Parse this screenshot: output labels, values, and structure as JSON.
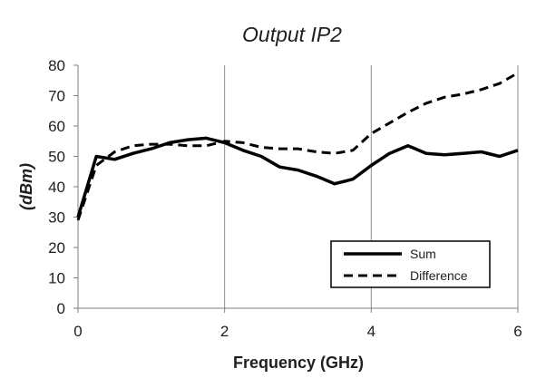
{
  "chart_data": {
    "type": "line",
    "title": "Output IP2",
    "xlabel": "Frequency (GHz)",
    "ylabel": "(dBm)",
    "xlim": [
      0,
      6
    ],
    "ylim": [
      0,
      80
    ],
    "x_ticks": [
      0,
      2,
      4,
      6
    ],
    "y_ticks": [
      0,
      10,
      20,
      30,
      40,
      50,
      60,
      70,
      80
    ],
    "grid": "vertical",
    "legend_position": "bottom-right",
    "series": [
      {
        "name": "Sum",
        "style": "solid",
        "color": "#000000",
        "x": [
          0,
          0.25,
          0.5,
          0.75,
          1.0,
          1.25,
          1.5,
          1.75,
          2.0,
          2.25,
          2.5,
          2.75,
          3.0,
          3.25,
          3.5,
          3.75,
          4.0,
          4.25,
          4.5,
          4.75,
          5.0,
          5.25,
          5.5,
          5.75,
          6.0
        ],
        "y": [
          30,
          50,
          49,
          51,
          52.5,
          54.5,
          55.5,
          56,
          54.5,
          52,
          50,
          46.5,
          45.5,
          43.5,
          41,
          42.5,
          47,
          51,
          53.5,
          51,
          50.5,
          51,
          51.5,
          50,
          52
        ]
      },
      {
        "name": "Difference",
        "style": "dashed",
        "color": "#000000",
        "x": [
          0,
          0.25,
          0.5,
          0.75,
          1.0,
          1.25,
          1.5,
          1.75,
          2.0,
          2.25,
          2.5,
          2.75,
          3.0,
          3.25,
          3.5,
          3.75,
          4.0,
          4.25,
          4.5,
          4.75,
          5.0,
          5.25,
          5.5,
          5.75,
          6.0
        ],
        "y": [
          29,
          47,
          51.5,
          53.5,
          54,
          54,
          53.5,
          53.5,
          55,
          54.5,
          53,
          52.5,
          52.5,
          51.5,
          51,
          52,
          57.5,
          61,
          64.5,
          67.5,
          69.5,
          70.5,
          72,
          74,
          77.5
        ]
      }
    ]
  }
}
